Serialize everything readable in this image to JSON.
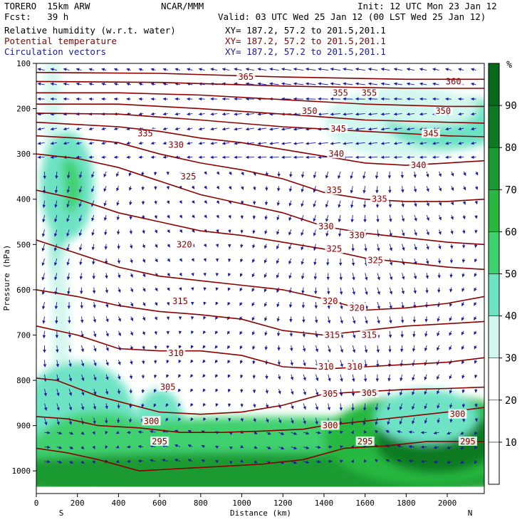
{
  "header": {
    "model": "TORERO  15km ARW",
    "center": "NCAR/MMM",
    "init": "Init: 12 UTC Mon 23 Jan 12",
    "fcst": "Fcst:   39 h",
    "valid": "Valid: 03 UTC Wed 25 Jan 12 (00 LST Wed 25 Jan 12)",
    "fields": [
      {
        "name": "Relative humidity (w.r.t. water)",
        "xy": "XY= 187.2, 57.2 to 201.5,201.1",
        "color": "#000000"
      },
      {
        "name": "Potential temperature",
        "xy": "XY= 187.2, 57.2 to 201.5,201.1",
        "color": "#8b0000"
      },
      {
        "name": "Circulation vectors",
        "xy": "XY= 187.2, 57.2 to 201.5,201.1",
        "color": "#1a1aa0"
      }
    ]
  },
  "chart_data": {
    "type": "cross-section",
    "ylabel": "Pressure (hPa)",
    "xlabel": "Distance (km)",
    "xlim": [
      0,
      2180
    ],
    "ylim": [
      1050,
      100
    ],
    "x_ticks": [
      0,
      200,
      400,
      600,
      800,
      1000,
      1200,
      1400,
      1600,
      1800,
      2000
    ],
    "y_ticks": [
      100,
      200,
      300,
      400,
      500,
      600,
      700,
      800,
      900,
      1000
    ],
    "x_end_labels": {
      "left": "S",
      "right": "N"
    },
    "colorbar": {
      "unit": "%",
      "levels": [
        10,
        20,
        30,
        40,
        50,
        60,
        70,
        80,
        90
      ],
      "colors": [
        "#ffffff",
        "#ffffff",
        "#ffffff",
        "#d2f7ef",
        "#6ee3c4",
        "#3fd070",
        "#28b840",
        "#1a9a30",
        "#0c7a22",
        "#0a6a1c"
      ]
    },
    "theta_isentropes": [
      {
        "value": 295,
        "points": [
          [
            0,
            950
          ],
          [
            150,
            960
          ],
          [
            300,
            975
          ],
          [
            500,
            1000
          ],
          [
            700,
            995
          ],
          [
            900,
            990
          ],
          [
            1100,
            985
          ],
          [
            1300,
            975
          ],
          [
            1500,
            950
          ],
          [
            1700,
            945
          ],
          [
            1900,
            935
          ],
          [
            2180,
            935
          ]
        ],
        "labels": [
          [
            600,
            935
          ],
          [
            1600,
            935
          ],
          [
            2100,
            935
          ]
        ]
      },
      {
        "value": 300,
        "points": [
          [
            0,
            880
          ],
          [
            150,
            885
          ],
          [
            300,
            900
          ],
          [
            500,
            905
          ],
          [
            700,
            915
          ],
          [
            900,
            915
          ],
          [
            1100,
            912
          ],
          [
            1300,
            908
          ],
          [
            1400,
            900
          ],
          [
            1600,
            890
          ],
          [
            1800,
            880
          ],
          [
            2000,
            870
          ],
          [
            2180,
            860
          ]
        ],
        "labels": [
          [
            560,
            890
          ],
          [
            1430,
            900
          ],
          [
            2050,
            875
          ]
        ]
      },
      {
        "value": 305,
        "points": [
          [
            0,
            795
          ],
          [
            100,
            800
          ],
          [
            300,
            835
          ],
          [
            600,
            870
          ],
          [
            800,
            875
          ],
          [
            1000,
            870
          ],
          [
            1200,
            855
          ],
          [
            1400,
            830
          ],
          [
            1600,
            825
          ],
          [
            1800,
            820
          ],
          [
            2000,
            818
          ],
          [
            2180,
            815
          ]
        ],
        "labels": [
          [
            640,
            815
          ],
          [
            1430,
            830
          ],
          [
            1620,
            828
          ]
        ]
      },
      {
        "value": 310,
        "points": [
          [
            0,
            680
          ],
          [
            200,
            700
          ],
          [
            400,
            730
          ],
          [
            600,
            735
          ],
          [
            800,
            735
          ],
          [
            1000,
            745
          ],
          [
            1200,
            770
          ],
          [
            1400,
            775
          ],
          [
            1600,
            770
          ],
          [
            1800,
            765
          ],
          [
            2000,
            760
          ],
          [
            2180,
            750
          ]
        ],
        "labels": [
          [
            680,
            740
          ],
          [
            1410,
            770
          ],
          [
            1550,
            770
          ]
        ]
      },
      {
        "value": 315,
        "points": [
          [
            0,
            600
          ],
          [
            200,
            615
          ],
          [
            400,
            635
          ],
          [
            600,
            648
          ],
          [
            800,
            655
          ],
          [
            1000,
            665
          ],
          [
            1200,
            690
          ],
          [
            1400,
            700
          ],
          [
            1600,
            690
          ],
          [
            1800,
            680
          ],
          [
            2000,
            675
          ],
          [
            2180,
            670
          ]
        ],
        "labels": [
          [
            700,
            625
          ],
          [
            1440,
            700
          ],
          [
            1620,
            700
          ]
        ]
      },
      {
        "value": 320,
        "points": [
          [
            0,
            490
          ],
          [
            200,
            520
          ],
          [
            400,
            550
          ],
          [
            600,
            570
          ],
          [
            800,
            580
          ],
          [
            1000,
            590
          ],
          [
            1200,
            600
          ],
          [
            1400,
            620
          ],
          [
            1600,
            645
          ],
          [
            1800,
            640
          ],
          [
            2000,
            630
          ],
          [
            2180,
            615
          ]
        ],
        "labels": [
          [
            720,
            500
          ],
          [
            1430,
            625
          ],
          [
            1560,
            640
          ]
        ]
      },
      {
        "value": 325,
        "points": [
          [
            0,
            380
          ],
          [
            200,
            400
          ],
          [
            400,
            430
          ],
          [
            600,
            450
          ],
          [
            800,
            470
          ],
          [
            1000,
            480
          ],
          [
            1200,
            495
          ],
          [
            1400,
            510
          ],
          [
            1600,
            530
          ],
          [
            1800,
            540
          ],
          [
            2000,
            550
          ],
          [
            2180,
            555
          ]
        ],
        "labels": [
          [
            740,
            350
          ],
          [
            1450,
            510
          ],
          [
            1650,
            535
          ]
        ]
      },
      {
        "value": 330,
        "points": [
          [
            0,
            300
          ],
          [
            200,
            310
          ],
          [
            400,
            330
          ],
          [
            600,
            360
          ],
          [
            800,
            390
          ],
          [
            1000,
            410
          ],
          [
            1200,
            430
          ],
          [
            1400,
            460
          ],
          [
            1600,
            475
          ],
          [
            1800,
            485
          ],
          [
            2000,
            495
          ],
          [
            2180,
            500
          ]
        ],
        "labels": [
          [
            680,
            280
          ],
          [
            1410,
            460
          ],
          [
            1560,
            480
          ]
        ]
      },
      {
        "value": 335,
        "points": [
          [
            0,
            260
          ],
          [
            200,
            265
          ],
          [
            400,
            275
          ],
          [
            600,
            300
          ],
          [
            800,
            320
          ],
          [
            1000,
            335
          ],
          [
            1200,
            355
          ],
          [
            1400,
            385
          ],
          [
            1600,
            400
          ],
          [
            1800,
            405
          ],
          [
            2000,
            405
          ],
          [
            2180,
            400
          ]
        ],
        "labels": [
          [
            530,
            255
          ],
          [
            1450,
            380
          ],
          [
            1670,
            400
          ]
        ]
      },
      {
        "value": 340,
        "points": [
          [
            0,
            230
          ],
          [
            200,
            235
          ],
          [
            400,
            240
          ],
          [
            600,
            250
          ],
          [
            800,
            265
          ],
          [
            1000,
            275
          ],
          [
            1200,
            290
          ],
          [
            1400,
            305
          ],
          [
            1600,
            320
          ],
          [
            1800,
            325
          ],
          [
            2000,
            320
          ],
          [
            2180,
            315
          ]
        ],
        "labels": [
          [
            1460,
            300
          ],
          [
            1860,
            325
          ]
        ]
      },
      {
        "value": 345,
        "points": [
          [
            0,
            210
          ],
          [
            400,
            212
          ],
          [
            800,
            225
          ],
          [
            1200,
            240
          ],
          [
            1400,
            245
          ],
          [
            1600,
            250
          ],
          [
            1800,
            255
          ],
          [
            2000,
            260
          ],
          [
            2180,
            262
          ]
        ],
        "labels": [
          [
            1470,
            245
          ],
          [
            1920,
            255
          ]
        ]
      },
      {
        "value": 350,
        "points": [
          [
            0,
            190
          ],
          [
            400,
            190
          ],
          [
            800,
            200
          ],
          [
            1200,
            212
          ],
          [
            1600,
            225
          ],
          [
            2000,
            230
          ],
          [
            2180,
            232
          ]
        ],
        "labels": [
          [
            1330,
            205
          ],
          [
            1980,
            205
          ]
        ]
      },
      {
        "value": 355,
        "points": [
          [
            0,
            165
          ],
          [
            400,
            165
          ],
          [
            800,
            170
          ],
          [
            1200,
            180
          ],
          [
            1600,
            190
          ],
          [
            2000,
            195
          ],
          [
            2180,
            195
          ]
        ],
        "labels": [
          [
            1480,
            165
          ],
          [
            1620,
            165
          ]
        ]
      },
      {
        "value": 360,
        "points": [
          [
            0,
            140
          ],
          [
            600,
            142
          ],
          [
            1200,
            150
          ],
          [
            1800,
            155
          ],
          [
            2180,
            155
          ]
        ],
        "labels": [
          [
            2030,
            140
          ]
        ]
      },
      {
        "value": 365,
        "points": [
          [
            0,
            120
          ],
          [
            600,
            122
          ],
          [
            1200,
            130
          ],
          [
            1800,
            135
          ],
          [
            2180,
            135
          ]
        ],
        "labels": [
          [
            1020,
            130
          ]
        ]
      }
    ]
  }
}
